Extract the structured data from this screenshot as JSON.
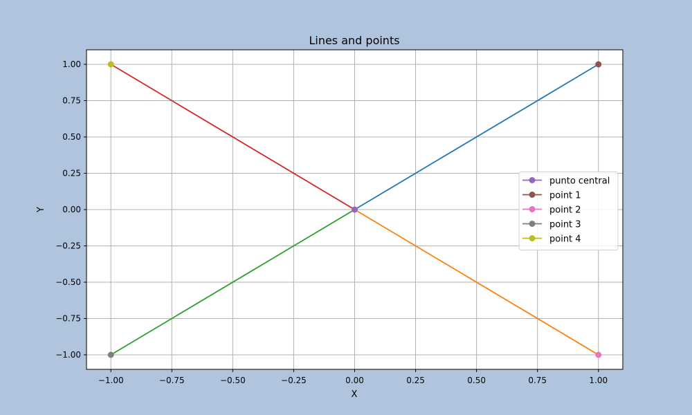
{
  "chart_data": {
    "type": "line",
    "title": "Lines and points",
    "xlabel": "X",
    "ylabel": "Y",
    "xlim": [
      -1.1,
      1.1
    ],
    "ylim": [
      -1.1,
      1.1
    ],
    "xticks": [
      -1.0,
      -0.75,
      -0.5,
      -0.25,
      0.0,
      0.25,
      0.5,
      0.75,
      1.0
    ],
    "yticks": [
      -1.0,
      -0.75,
      -0.5,
      -0.25,
      0.0,
      0.25,
      0.5,
      0.75,
      1.0
    ],
    "xtick_labels": [
      "−1.00",
      "−0.75",
      "−0.50",
      "−0.25",
      "0.00",
      "0.25",
      "0.50",
      "0.75",
      "1.00"
    ],
    "ytick_labels": [
      "−1.00",
      "−0.75",
      "−0.50",
      "−0.25",
      "0.00",
      "0.25",
      "0.50",
      "0.75",
      "1.00"
    ],
    "grid": true,
    "legend_position": "center-right",
    "lines": [
      {
        "x": [
          0,
          1
        ],
        "y": [
          0,
          1
        ],
        "color": "#1f77b4"
      },
      {
        "x": [
          0,
          1
        ],
        "y": [
          0,
          -1
        ],
        "color": "#ff7f0e"
      },
      {
        "x": [
          0,
          -1
        ],
        "y": [
          0,
          -1
        ],
        "color": "#2ca02c"
      },
      {
        "x": [
          0,
          -1
        ],
        "y": [
          0,
          1
        ],
        "color": "#d62728"
      }
    ],
    "points": [
      {
        "name": "punto central",
        "x": 0,
        "y": 0,
        "color": "#9467bd"
      },
      {
        "name": "point 1",
        "x": 1,
        "y": 1,
        "color": "#8c564b"
      },
      {
        "name": "point 2",
        "x": 1,
        "y": -1,
        "color": "#e377c2"
      },
      {
        "name": "point 3",
        "x": -1,
        "y": -1,
        "color": "#7f7f7f"
      },
      {
        "name": "point 4",
        "x": -1,
        "y": 1,
        "color": "#bcbd22"
      }
    ]
  },
  "colors": {
    "figure_background": "#b0c4de",
    "axes_background": "#ffffff",
    "grid": "#b0b0b0"
  }
}
